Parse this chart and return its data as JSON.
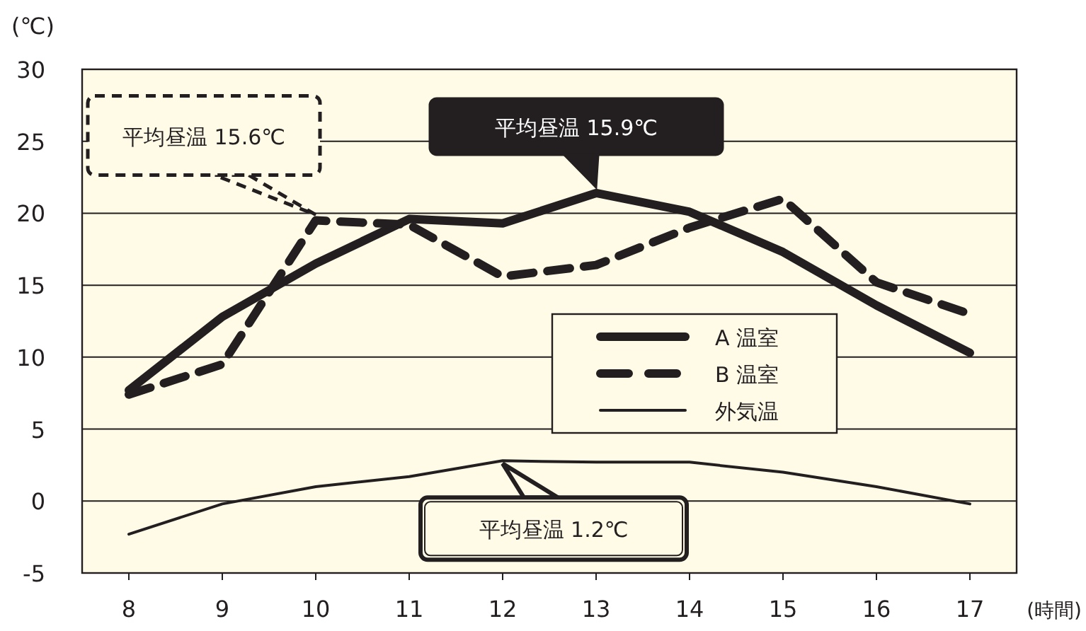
{
  "chart_data": {
    "type": "line",
    "xlabel": "(時間)",
    "ylabel": "(℃)",
    "x": [
      8,
      9,
      10,
      11,
      12,
      13,
      14,
      15,
      16,
      17
    ],
    "xlim": [
      7.5,
      17.5
    ],
    "xticks": [
      8,
      9,
      10,
      11,
      12,
      13,
      14,
      15,
      16,
      17
    ],
    "ylim": [
      -5,
      30
    ],
    "yticks": [
      -5,
      0,
      5,
      10,
      15,
      20,
      25,
      30
    ],
    "grid": "y",
    "legend": "right",
    "series": [
      {
        "name": "A 温室",
        "color": "#231f20",
        "line_style": "solid",
        "values": [
          7.7,
          12.8,
          16.5,
          19.6,
          19.3,
          21.4,
          20.1,
          17.3,
          13.6,
          10.3
        ]
      },
      {
        "name": "B 温室",
        "color": "#231f20",
        "line_style": "dashed",
        "values": [
          7.4,
          9.5,
          19.5,
          19.2,
          15.6,
          16.4,
          19.0,
          21.0,
          15.2,
          13.0
        ]
      },
      {
        "name": "外気温",
        "color": "#231f20",
        "line_style": "solid",
        "values": [
          -2.3,
          -0.2,
          1.0,
          1.7,
          2.8,
          2.7,
          2.7,
          2.0,
          1.0,
          -0.2
        ]
      }
    ],
    "annotations": [
      {
        "text": "平均昼温 15.6℃",
        "x": 10,
        "y": 19.5
      },
      {
        "text": "平均昼温 15.9℃",
        "x": 13,
        "y": 21.4
      },
      {
        "text": "平均昼温 1.2℃",
        "x": 12,
        "y": 2.8
      }
    ]
  }
}
